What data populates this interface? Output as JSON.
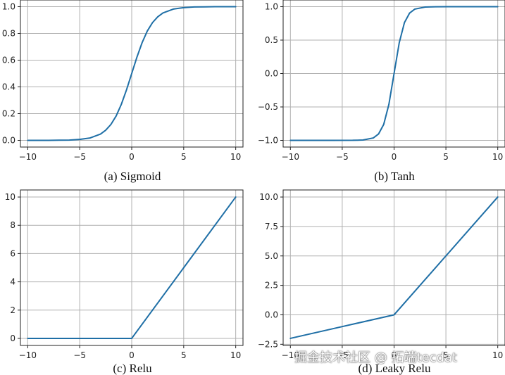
{
  "chart_data": [
    {
      "type": "line",
      "caption": "(a) Sigmoid",
      "function": "sigmoid",
      "color": "#1f6fa6",
      "xlim": [
        -10.7,
        10.7
      ],
      "ylim": [
        -0.05,
        1.05
      ],
      "xticks": [
        -10,
        -5,
        0,
        5,
        10
      ],
      "xtick_labels": [
        "−10",
        "−5",
        "0",
        "5",
        "10"
      ],
      "yticks": [
        0.0,
        0.2,
        0.4,
        0.6,
        0.8,
        1.0
      ],
      "ytick_labels": [
        "0.0",
        "0.2",
        "0.4",
        "0.6",
        "0.8",
        "1.0"
      ],
      "x": [
        -10,
        -9,
        -8,
        -7,
        -6,
        -5,
        -4,
        -3,
        -2.5,
        -2,
        -1.5,
        -1,
        -0.5,
        0,
        0.5,
        1,
        1.5,
        2,
        2.5,
        3,
        4,
        5,
        6,
        7,
        8,
        9,
        10
      ],
      "y": [
        0.0,
        0.0,
        0.0,
        0.001,
        0.002,
        0.007,
        0.018,
        0.047,
        0.076,
        0.119,
        0.182,
        0.269,
        0.378,
        0.5,
        0.622,
        0.731,
        0.818,
        0.881,
        0.924,
        0.953,
        0.982,
        0.993,
        0.998,
        0.999,
        1.0,
        1.0,
        1.0
      ],
      "grid": true
    },
    {
      "type": "line",
      "caption": "(b) Tanh",
      "function": "tanh",
      "color": "#1f6fa6",
      "xlim": [
        -10.7,
        10.7
      ],
      "ylim": [
        -1.1,
        1.1
      ],
      "xticks": [
        -10,
        -5,
        0,
        5,
        10
      ],
      "xtick_labels": [
        "−10",
        "−5",
        "0",
        "5",
        "10"
      ],
      "yticks": [
        -1.0,
        -0.5,
        0.0,
        0.5,
        1.0
      ],
      "ytick_labels": [
        "−1.0",
        "−0.5",
        "0.0",
        "0.5",
        "1.0"
      ],
      "x": [
        -10,
        -8,
        -6,
        -4,
        -3,
        -2,
        -1.5,
        -1,
        -0.5,
        0,
        0.5,
        1,
        1.5,
        2,
        3,
        4,
        6,
        8,
        10
      ],
      "y": [
        -1.0,
        -1.0,
        -1.0,
        -0.999,
        -0.995,
        -0.964,
        -0.905,
        -0.762,
        -0.462,
        0.0,
        0.462,
        0.762,
        0.905,
        0.964,
        0.995,
        0.999,
        1.0,
        1.0,
        1.0
      ],
      "grid": true
    },
    {
      "type": "line",
      "caption": "(c) Relu",
      "function": "relu",
      "color": "#1f6fa6",
      "xlim": [
        -10.7,
        10.7
      ],
      "ylim": [
        -0.5,
        10.5
      ],
      "xticks": [
        -10,
        -5,
        0,
        5,
        10
      ],
      "xtick_labels": [
        "−10",
        "−5",
        "0",
        "5",
        "10"
      ],
      "yticks": [
        0,
        2,
        4,
        6,
        8,
        10
      ],
      "ytick_labels": [
        "0",
        "2",
        "4",
        "6",
        "8",
        "10"
      ],
      "x": [
        -10,
        -5,
        0,
        5,
        10
      ],
      "y": [
        0,
        0,
        0,
        5,
        10
      ],
      "grid": true
    },
    {
      "type": "line",
      "caption": "(d) Leaky Relu",
      "function": "leaky_relu",
      "color": "#1f6fa6",
      "xlim": [
        -10.7,
        10.7
      ],
      "ylim": [
        -2.6,
        10.6
      ],
      "xticks": [
        -10,
        -5,
        0,
        5,
        10
      ],
      "xtick_labels": [
        "−10",
        "−5",
        "0",
        "5",
        "10"
      ],
      "yticks": [
        -2.5,
        0.0,
        2.5,
        5.0,
        7.5,
        10.0
      ],
      "ytick_labels": [
        "−2.5",
        "0.0",
        "2.5",
        "5.0",
        "7.5",
        "10.0"
      ],
      "x": [
        -10,
        -5,
        0,
        5,
        10
      ],
      "y": [
        -2,
        -1,
        0,
        5,
        10
      ],
      "grid": true
    }
  ],
  "watermark": "掘金技术社区 @ 拓端tecdat"
}
